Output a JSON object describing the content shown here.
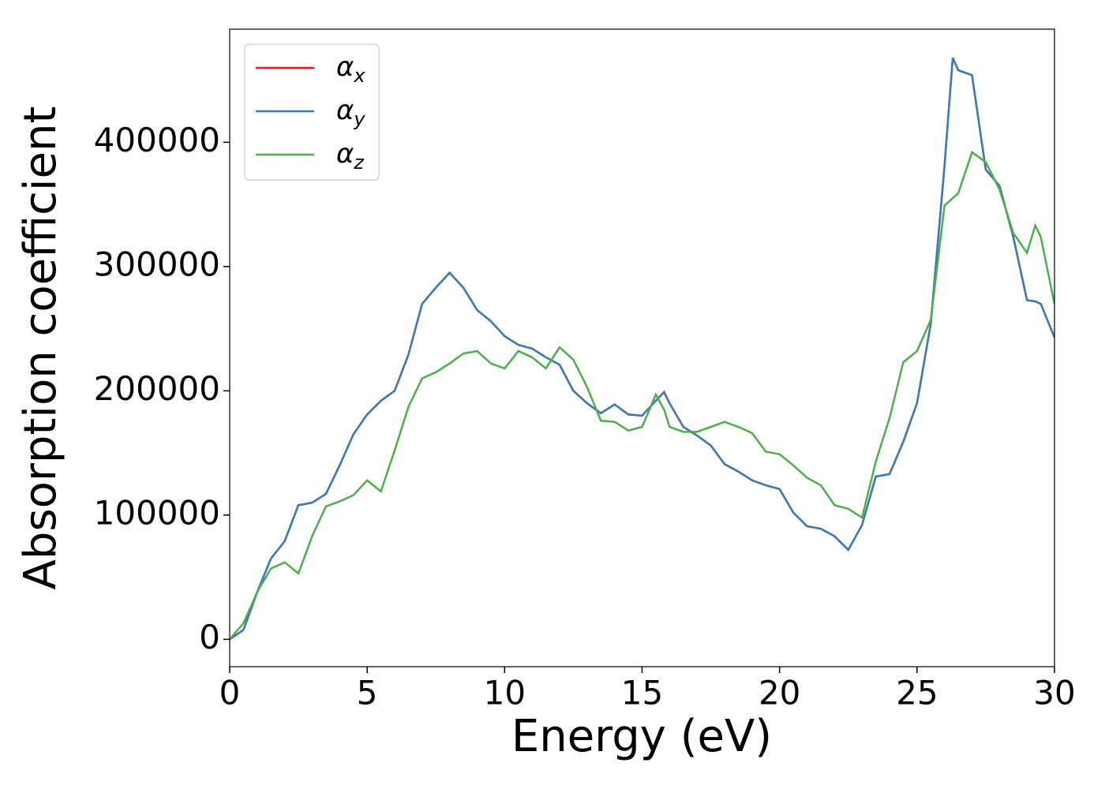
{
  "chart_data": {
    "type": "line",
    "xlabel": "Energy (eV)",
    "ylabel": "Absorption coefficient",
    "x": [
      0,
      0.5,
      1,
      1.5,
      2,
      2.5,
      3,
      3.5,
      4,
      4.5,
      5,
      5.5,
      6,
      6.5,
      7,
      7.5,
      8,
      8.5,
      9,
      9.5,
      10,
      10.5,
      11,
      11.5,
      12,
      12.5,
      13,
      13.5,
      14,
      14.5,
      15,
      15.5,
      15.8,
      16,
      16.5,
      17,
      17.5,
      18,
      18.5,
      19,
      19.5,
      20,
      20.5,
      21,
      21.5,
      22,
      22.5,
      23,
      23.5,
      24,
      24.5,
      25,
      25.5,
      26,
      26.3,
      26.5,
      27,
      27.5,
      28,
      28.5,
      29,
      29.3,
      29.5,
      30
    ],
    "series": [
      {
        "name": "αx",
        "color": "#e41a1c",
        "values": [
          0,
          7600,
          38000,
          65000,
          79000,
          108000,
          110000,
          117000,
          140000,
          165000,
          181000,
          192000,
          200000,
          229000,
          270000,
          283000,
          295000,
          283000,
          265000,
          256000,
          244000,
          237000,
          234000,
          227000,
          221000,
          200000,
          190000,
          182000,
          189000,
          181000,
          180000,
          192000,
          199000,
          190000,
          171000,
          164000,
          156000,
          141000,
          135000,
          128000,
          124000,
          121000,
          102000,
          91000,
          89000,
          83000,
          72000,
          92000,
          131000,
          133000,
          159000,
          190000,
          254000,
          381000,
          468000,
          458000,
          454000,
          378000,
          365000,
          324000,
          273000,
          272000,
          270000,
          243000
        ]
      },
      {
        "name": "αy",
        "color": "#377eb8",
        "values": [
          0,
          7600,
          38000,
          65000,
          79000,
          108000,
          110000,
          117000,
          140000,
          165000,
          181000,
          192000,
          200000,
          229000,
          270000,
          283000,
          295000,
          283000,
          265000,
          256000,
          244000,
          237000,
          234000,
          227000,
          221000,
          200000,
          190000,
          182000,
          189000,
          181000,
          180000,
          192000,
          199000,
          190000,
          171000,
          164000,
          156000,
          141000,
          135000,
          128000,
          124000,
          121000,
          102000,
          91000,
          89000,
          83000,
          72000,
          92000,
          131000,
          133000,
          159000,
          190000,
          254000,
          381000,
          468000,
          458000,
          454000,
          378000,
          365000,
          324000,
          273000,
          272000,
          270000,
          243000
        ]
      },
      {
        "name": "αz",
        "color": "#4daf4a",
        "values": [
          0,
          13000,
          38000,
          57000,
          62000,
          53000,
          83000,
          107000,
          111000,
          116000,
          128000,
          119000,
          152000,
          187000,
          210000,
          215000,
          222000,
          230000,
          232000,
          222000,
          218000,
          232000,
          227000,
          218000,
          235000,
          225000,
          203000,
          176000,
          175000,
          168000,
          171000,
          197000,
          185000,
          171000,
          167000,
          167000,
          171000,
          175000,
          171000,
          166000,
          151000,
          149000,
          140000,
          130000,
          124000,
          108000,
          105000,
          98000,
          143000,
          178000,
          223000,
          232000,
          257000,
          349000,
          355000,
          359000,
          392000,
          384000,
          362000,
          327000,
          311000,
          333000,
          324000,
          270000
        ]
      }
    ],
    "xlim": [
      0,
      30
    ],
    "xticks": [
      0,
      5,
      10,
      15,
      20,
      25,
      30
    ],
    "ylim": [
      -22000,
      491000
    ],
    "yticks": [
      0,
      100000,
      200000,
      300000,
      400000
    ],
    "legend": "upper left"
  }
}
